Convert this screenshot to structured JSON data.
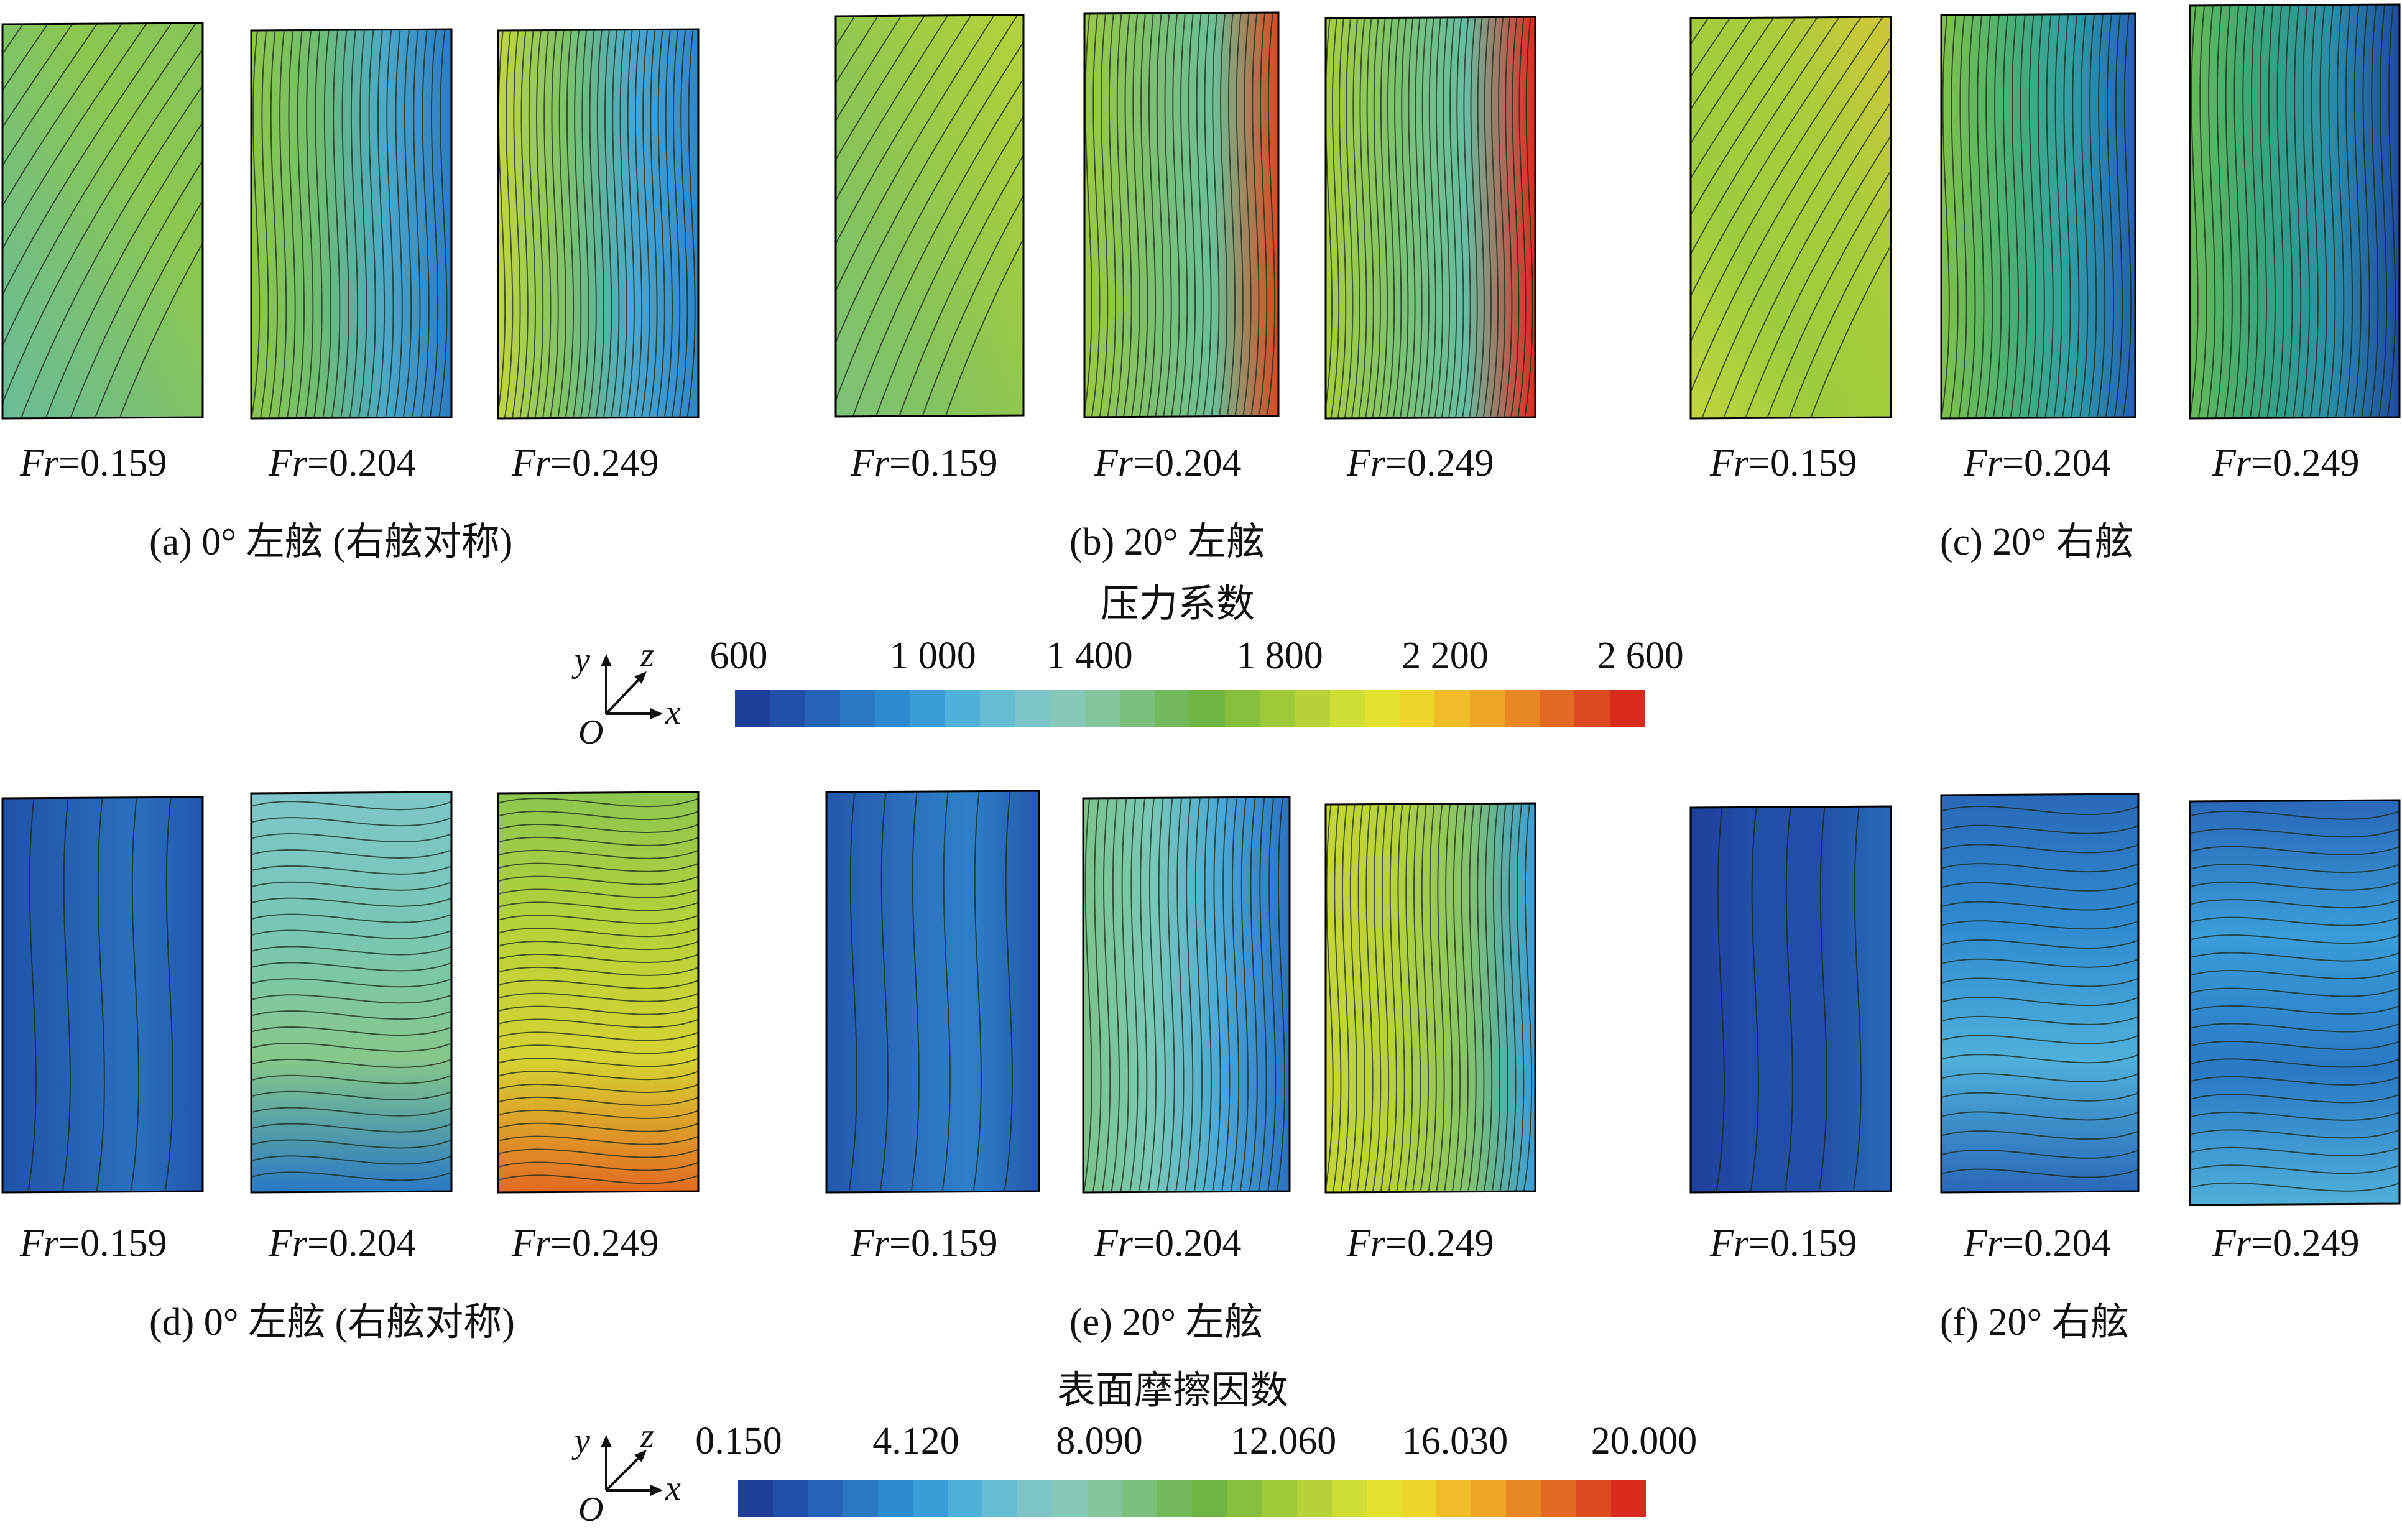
{
  "pressure": {
    "panels": [
      {
        "label": "(a) 0° 左舷 (右舷对称)",
        "fr": [
          "0.159",
          "0.204",
          "0.249"
        ]
      },
      {
        "label": "(b) 20° 左舷",
        "fr": [
          "0.159",
          "0.204",
          "0.249"
        ]
      },
      {
        "label": "(c) 20° 右舷",
        "fr": [
          "0.159",
          "0.204",
          "0.249"
        ]
      }
    ],
    "colorbar_title": "压力系数",
    "ticks": [
      "600",
      "1 000",
      "1 400",
      "1 800",
      "2 200",
      "2 600"
    ]
  },
  "friction": {
    "panels": [
      {
        "label": "(d) 0° 左舷 (右舷对称)",
        "fr": [
          "0.159",
          "0.204",
          "0.249"
        ]
      },
      {
        "label": "(e) 20° 左舷",
        "fr": [
          "0.159",
          "0.204",
          "0.249"
        ]
      },
      {
        "label": "(f) 20° 右舷",
        "fr": [
          "0.159",
          "0.204",
          "0.249"
        ]
      }
    ],
    "colorbar_title": "表面摩擦因数",
    "ticks": [
      "0.150",
      "4.120",
      "8.090",
      "12.060",
      "16.030",
      "20.000"
    ]
  },
  "fr_symbol": "Fr",
  "axes_labels": {
    "y": "y",
    "z": "z",
    "x": "x",
    "origin": "O"
  },
  "colormap": [
    "#1f3e9a",
    "#2150a8",
    "#2463b6",
    "#2a77c4",
    "#2f8bd0",
    "#3a9dd8",
    "#4fb0d9",
    "#66bcd3",
    "#7cc4c8",
    "#86c9b8",
    "#83c69c",
    "#7cc07e",
    "#72b95c",
    "#6fb544",
    "#85bf3c",
    "#9ec93a",
    "#b6d33a",
    "#cede35",
    "#e3e22f",
    "#eed52a",
    "#f0bd28",
    "#eea426",
    "#e88724",
    "#e36a22",
    "#de4a20",
    "#d92b1e"
  ],
  "colors": {
    "contour": "#1a2a1a",
    "edge": "#000000"
  }
}
